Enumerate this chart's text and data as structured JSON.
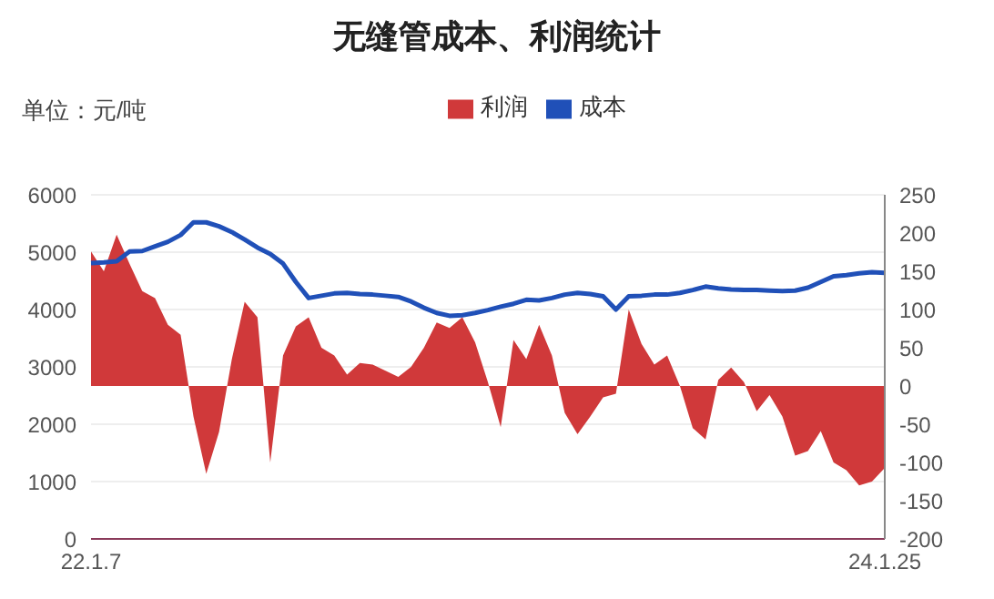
{
  "chart_data": {
    "type": "line",
    "title": "无缝管成本、利润统计",
    "annotations": [
      "单位：元/吨"
    ],
    "categories": [
      "22.1.7",
      null,
      null,
      null,
      null,
      null,
      null,
      null,
      null,
      null,
      null,
      null,
      null,
      null,
      null,
      null,
      null,
      null,
      null,
      null,
      null,
      null,
      null,
      null,
      null,
      null,
      null,
      null,
      null,
      null,
      null,
      null,
      null,
      null,
      null,
      null,
      null,
      null,
      null,
      null,
      null,
      null,
      null,
      null,
      null,
      null,
      null,
      null,
      null,
      null,
      null,
      null,
      null,
      null,
      null,
      null,
      null,
      null,
      null,
      null,
      null,
      null,
      "24.1.25"
    ],
    "series": [
      {
        "name": "利润",
        "type": "area",
        "axis": "y2",
        "color": "#d0393a",
        "values": [
          176,
          150,
          198,
          160,
          124,
          115,
          80,
          67,
          -40,
          -115,
          -60,
          35,
          110,
          90,
          -100,
          40,
          78,
          90,
          50,
          40,
          15,
          30,
          28,
          20,
          12,
          25,
          50,
          83,
          76,
          90,
          57,
          5,
          -54,
          60,
          35,
          80,
          40,
          -35,
          -63,
          -40,
          -15,
          -10,
          100,
          55,
          28,
          40,
          0,
          -55,
          -70,
          8,
          24,
          5,
          -33,
          -12,
          -40,
          -91,
          -85,
          -59,
          -100,
          -110,
          -130,
          -125,
          -107
        ]
      },
      {
        "name": "成本",
        "color": "#2050b8",
        "values": [
          4810,
          4820,
          4840,
          5010,
          5020,
          5100,
          5180,
          5300,
          5520,
          5520,
          5450,
          5350,
          5220,
          5080,
          4970,
          4800,
          4480,
          4200,
          4240,
          4280,
          4290,
          4270,
          4260,
          4240,
          4220,
          4140,
          4030,
          3940,
          3890,
          3900,
          3940,
          3990,
          4050,
          4100,
          4170,
          4160,
          4200,
          4260,
          4290,
          4270,
          4230,
          4000,
          4230,
          4240,
          4260,
          4260,
          4290,
          4340,
          4400,
          4370,
          4350,
          4340,
          4340,
          4330,
          4320,
          4330,
          4380,
          4480,
          4580,
          4600,
          4630,
          4650,
          4640
        ]
      }
    ],
    "ylim": [
      0,
      6000
    ],
    "yticks": [
      0,
      1000,
      2000,
      3000,
      4000,
      5000,
      6000
    ],
    "y2lim": [
      -200,
      250
    ],
    "y2ticks": [
      -200,
      -150,
      -100,
      -50,
      0,
      50,
      100,
      150,
      200,
      250
    ],
    "grid": "y",
    "legend": "top",
    "marker": "none"
  }
}
